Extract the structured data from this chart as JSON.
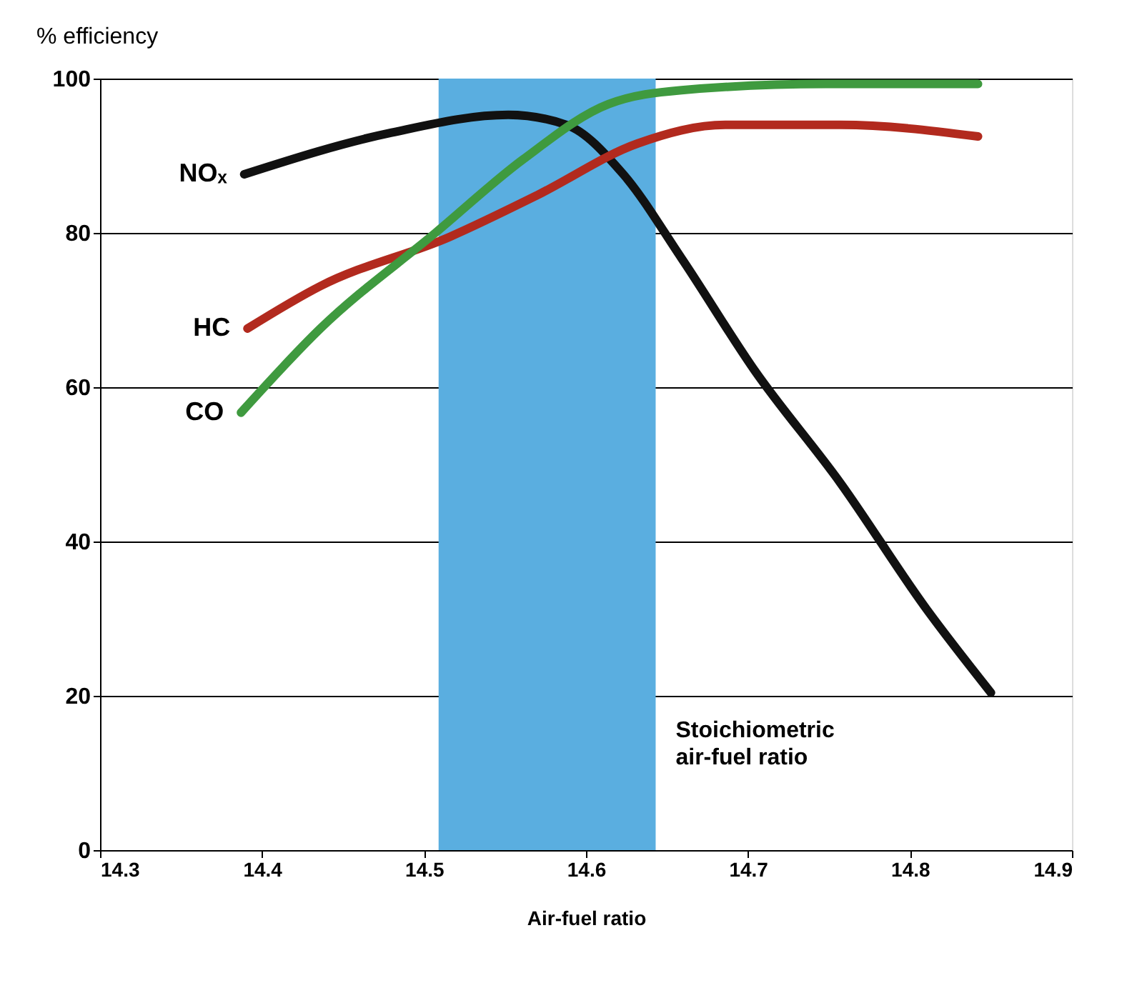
{
  "chart_data": {
    "type": "line",
    "xlabel": "Air-fuel ratio",
    "ylabel": "% efficiency",
    "xlim": [
      14.3,
      14.9
    ],
    "xticks": [
      14.3,
      14.4,
      14.5,
      14.6,
      14.7,
      14.8,
      14.9
    ],
    "ylim": [
      0,
      100
    ],
    "yticks": [
      0,
      20,
      40,
      60,
      80,
      100
    ],
    "grid": "y",
    "legend": false,
    "marker": "none",
    "line_style": "solid",
    "series": [
      {
        "name": "NOₓ",
        "color": "#111111",
        "x": [
          14.389,
          14.48,
          14.552,
          14.588,
          14.623,
          14.659,
          14.704,
          14.757,
          14.81,
          14.85
        ],
        "values": [
          87.6,
          93,
          95.3,
          94,
          87.6,
          76.7,
          62.2,
          47.6,
          31.3,
          20.4
        ]
      },
      {
        "name": "HC",
        "color": "#b22a1e",
        "x": [
          14.391,
          14.436,
          14.516,
          14.57,
          14.632,
          14.686,
          14.757,
          14.842
        ],
        "values": [
          67.6,
          73.1,
          79.5,
          84.9,
          91.6,
          94,
          94,
          92.5
        ]
      },
      {
        "name": "CO",
        "color": "#3f9a3f",
        "x": [
          14.387,
          14.436,
          14.507,
          14.561,
          14.614,
          14.659,
          14.748,
          14.842
        ],
        "values": [
          56.7,
          67.6,
          80,
          89.5,
          96.7,
          98.5,
          99.3,
          99.3
        ]
      }
    ],
    "bands": [
      {
        "axis": "x",
        "from": 14.509,
        "to": 14.643,
        "label": "Stoichiometric\nair-fuel ratio",
        "color": "#5aaee0"
      }
    ]
  }
}
